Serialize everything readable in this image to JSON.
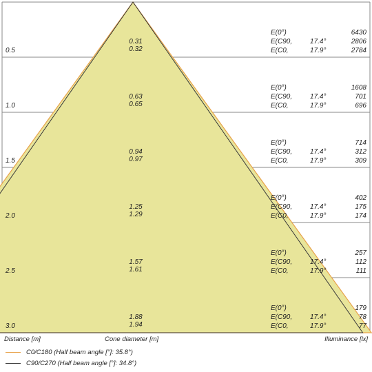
{
  "chart_data": {
    "type": "cone",
    "axis_titles": {
      "distance": "Distance [m]",
      "cone": "Cone diameter [m]",
      "illuminance": "Illuminance [lx]"
    },
    "rows": [
      {
        "distance": "0.5",
        "cone_c0": "0.32",
        "cone_c90": "0.31",
        "lines": [
          {
            "label": "E(0°)",
            "angle": "",
            "value": "6430"
          },
          {
            "label": "E(C90,",
            "angle": "17.4°",
            "value": "2806"
          },
          {
            "label": "E(C0,",
            "angle": "17.9°",
            "value": "2784"
          }
        ]
      },
      {
        "distance": "1.0",
        "cone_c0": "0.65",
        "cone_c90": "0.63",
        "lines": [
          {
            "label": "E(0°)",
            "angle": "",
            "value": "1608"
          },
          {
            "label": "E(C90,",
            "angle": "17.4°",
            "value": "701"
          },
          {
            "label": "E(C0,",
            "angle": "17.9°",
            "value": "696"
          }
        ]
      },
      {
        "distance": "1.5",
        "cone_c0": "0.97",
        "cone_c90": "0.94",
        "lines": [
          {
            "label": "E(0°)",
            "angle": "",
            "value": "714"
          },
          {
            "label": "E(C90,",
            "angle": "17.4°",
            "value": "312"
          },
          {
            "label": "E(C0,",
            "angle": "17.9°",
            "value": "309"
          }
        ]
      },
      {
        "distance": "2.0",
        "cone_c0": "1.29",
        "cone_c90": "1.25",
        "lines": [
          {
            "label": "E(0°)",
            "angle": "",
            "value": "402"
          },
          {
            "label": "E(C90,",
            "angle": "17.4°",
            "value": "175"
          },
          {
            "label": "E(C0,",
            "angle": "17.9°",
            "value": "174"
          }
        ]
      },
      {
        "distance": "2.5",
        "cone_c0": "1.61",
        "cone_c90": "1.57",
        "lines": [
          {
            "label": "E(0°)",
            "angle": "",
            "value": "257"
          },
          {
            "label": "E(C90,",
            "angle": "17.4°",
            "value": "112"
          },
          {
            "label": "E(C0,",
            "angle": "17.9°",
            "value": "111"
          }
        ]
      },
      {
        "distance": "3.0",
        "cone_c0": "1.94",
        "cone_c90": "1.88",
        "lines": [
          {
            "label": "E(0°)",
            "angle": "",
            "value": "179"
          },
          {
            "label": "E(C90,",
            "angle": "17.4°",
            "value": "78"
          },
          {
            "label": "E(C0,",
            "angle": "17.9°",
            "value": "77"
          }
        ]
      }
    ],
    "series": [
      {
        "name": "C0/C180 (Half beam angle [°]: 35.8°)",
        "half_beam_angle": 35.8,
        "color": "#e8a24a"
      },
      {
        "name": "C90/C270 (Half beam angle [°]: 34.8°)",
        "half_beam_angle": 34.8,
        "color": "#3a3a3a"
      }
    ],
    "colors": {
      "cone_fill": "#e8e59a",
      "grid": "#888888"
    }
  }
}
